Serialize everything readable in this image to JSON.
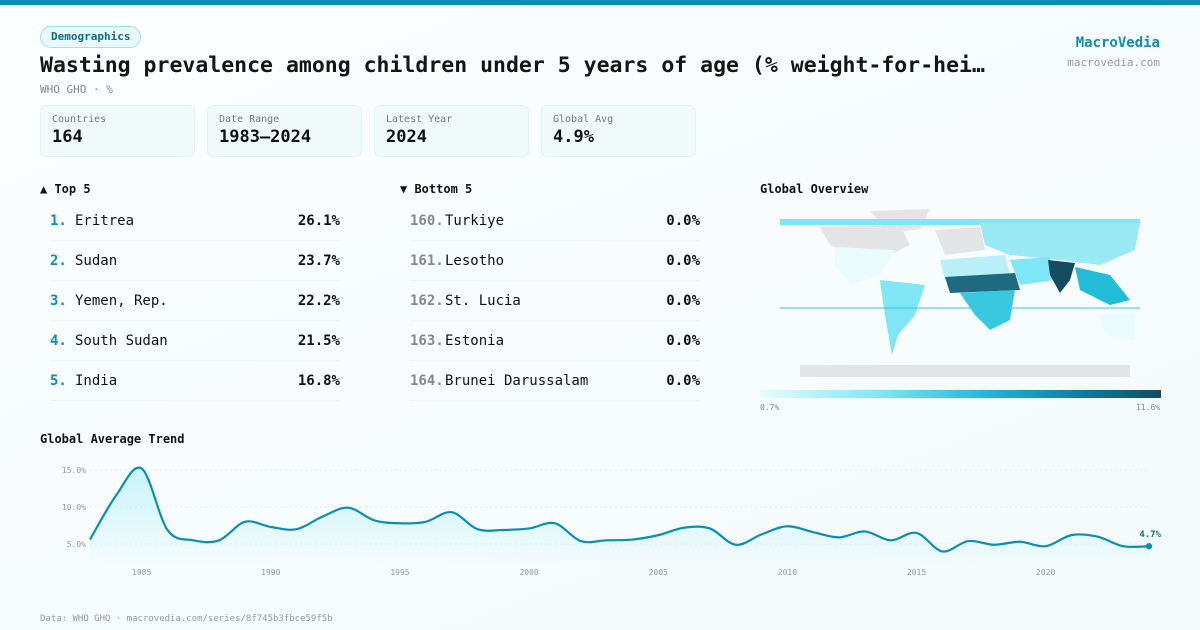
{
  "header": {
    "category": "Demographics",
    "title": "Wasting prevalence among children under 5 years of age (% weight-for-hei…",
    "subtitle": "WHO GHO · %",
    "brand": "MacroVedia",
    "brand_url": "macrovedia.com"
  },
  "stats": [
    {
      "label": "Countries",
      "value": "164"
    },
    {
      "label": "Date Range",
      "value": "1983–2024"
    },
    {
      "label": "Latest Year",
      "value": "2024"
    },
    {
      "label": "Global Avg",
      "value": "4.9%"
    }
  ],
  "top5": {
    "title": "▲ Top 5",
    "items": [
      {
        "rank": "1.",
        "name": "Eritrea",
        "value": "26.1%"
      },
      {
        "rank": "2.",
        "name": "Sudan",
        "value": "23.7%"
      },
      {
        "rank": "3.",
        "name": "Yemen, Rep.",
        "value": "22.2%"
      },
      {
        "rank": "4.",
        "name": "South Sudan",
        "value": "21.5%"
      },
      {
        "rank": "5.",
        "name": "India",
        "value": "16.8%"
      }
    ]
  },
  "bottom5": {
    "title": "▼ Bottom 5",
    "items": [
      {
        "rank": "160.",
        "name": "Turkiye",
        "value": "0.0%"
      },
      {
        "rank": "161.",
        "name": "Lesotho",
        "value": "0.0%"
      },
      {
        "rank": "162.",
        "name": "St. Lucia",
        "value": "0.0%"
      },
      {
        "rank": "163.",
        "name": "Estonia",
        "value": "0.0%"
      },
      {
        "rank": "164.",
        "name": "Brunei Darussalam",
        "value": "0.0%"
      }
    ]
  },
  "map": {
    "title": "Global Overview",
    "legend_min": "0.7%",
    "legend_max": "11.6%"
  },
  "colors": {
    "accent": "#0a8fb3",
    "dark": "#154b60"
  },
  "footer": "Data: WHO GHO · macrovedia.com/series/8f745b3fbce59f5b",
  "chart_data": {
    "type": "area",
    "title": "Global Average Trend",
    "ylim": [
      0,
      16
    ],
    "yticks": [
      5,
      10,
      15
    ],
    "ytick_labels": [
      "5.0%",
      "10.0%",
      "15.0%"
    ],
    "xticks": [
      1985,
      1990,
      1995,
      2000,
      2005,
      2010,
      2015,
      2020
    ],
    "last_label": "4.7%",
    "x": [
      1983,
      1984,
      1985,
      1986,
      1987,
      1988,
      1989,
      1990,
      1991,
      1992,
      1993,
      1994,
      1995,
      1996,
      1997,
      1998,
      1999,
      2000,
      2001,
      2002,
      2003,
      2004,
      2005,
      2006,
      2007,
      2008,
      2009,
      2010,
      2011,
      2012,
      2013,
      2014,
      2015,
      2016,
      2017,
      2018,
      2019,
      2020,
      2021,
      2022,
      2023,
      2024
    ],
    "y": [
      5.6,
      11.5,
      15.2,
      6.9,
      5.5,
      5.5,
      8.0,
      7.3,
      7.0,
      8.7,
      9.9,
      8.2,
      7.8,
      8.0,
      9.3,
      7.0,
      6.9,
      7.1,
      7.8,
      5.4,
      5.5,
      5.6,
      6.2,
      7.2,
      7.1,
      4.9,
      6.3,
      7.4,
      6.6,
      5.9,
      6.7,
      5.5,
      6.5,
      4.0,
      5.4,
      4.9,
      5.3,
      4.7,
      6.2,
      6.0,
      4.7,
      4.7
    ]
  }
}
